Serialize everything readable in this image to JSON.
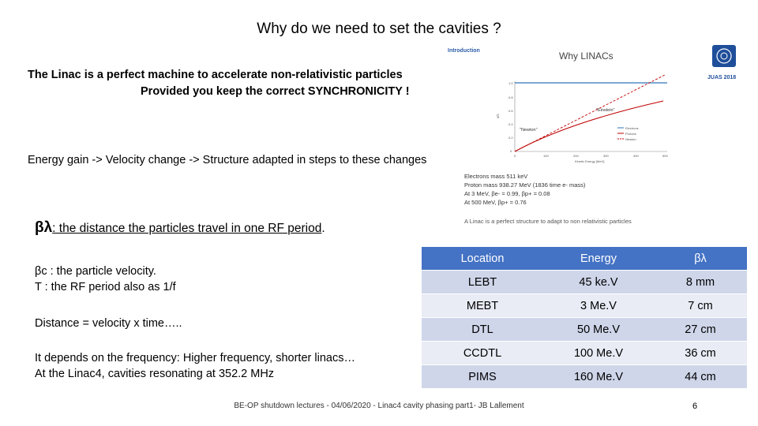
{
  "title": "Why do we need to set the cavities ?",
  "intro": {
    "line1": "The Linac is a perfect machine to accelerate non-relativistic particles",
    "line2": "Provided you keep the correct SYNCHRONICITY !"
  },
  "energy_line": "Energy gain -> Velocity change -> Structure adapted in steps to these changes",
  "beta_lambda": {
    "symbol": "βλ",
    "definition": ": the distance the particles travel in one RF period",
    "period": "."
  },
  "body": {
    "line1": "βc : the particle velocity.",
    "line2": "T : the RF period also as 1/f",
    "line3": "Distance = velocity x time…..",
    "line4": "It depends on the frequency: Higher frequency, shorter linacs…",
    "line5": "At the Linac4, cavities resonating at 352.2 MHz"
  },
  "inset": {
    "section": "Introduction",
    "heading": "Why LINACs",
    "logo_text": "JUAS 2018",
    "curve_labels": [
      "\"Einstein\"",
      "\"Newton\""
    ],
    "legend": [
      "Electrons",
      "Protons",
      "Newton"
    ],
    "y_axis_label": "v/c",
    "x_axis_label": "Kinetic Energy [MeV]",
    "y_ticks": [
      "1.0",
      "0.8",
      "0.6",
      "0.4",
      "0.2",
      "0"
    ],
    "x_ticks": [
      "0",
      "100",
      "200",
      "300",
      "400",
      "500"
    ],
    "notes": [
      "Electrons mass 511 keV",
      "Proton mass 938.27 MeV (1836 time e- mass)",
      "At 3 MeV, βe- = 0.99, βp+ = 0.08",
      "At 500 MeV, βp+ = 0.76"
    ],
    "caption": "A Linac is a perfect structure to adapt to non relativistic particles"
  },
  "table": {
    "headers": [
      "Location",
      "Energy",
      "βλ"
    ],
    "rows": [
      [
        "LEBT",
        "45 ke.V",
        "8 mm"
      ],
      [
        "MEBT",
        "3 Me.V",
        "7 cm"
      ],
      [
        "DTL",
        "50 Me.V",
        "27 cm"
      ],
      [
        "CCDTL",
        "100 Me.V",
        "36 cm"
      ],
      [
        "PIMS",
        "160 Me.V",
        "44 cm"
      ]
    ]
  },
  "footer": "BE-OP shutdown lectures - 04/06/2020 - Linac4  cavity phasing part1- JB Lallement",
  "page_number": "6",
  "colors": {
    "table_header": "#4472c4",
    "table_row_dark": "#cfd6ea",
    "table_row_light": "#e9ecf5",
    "einstein_curve": "#2e75b6",
    "newton_curve": "#c00000"
  }
}
